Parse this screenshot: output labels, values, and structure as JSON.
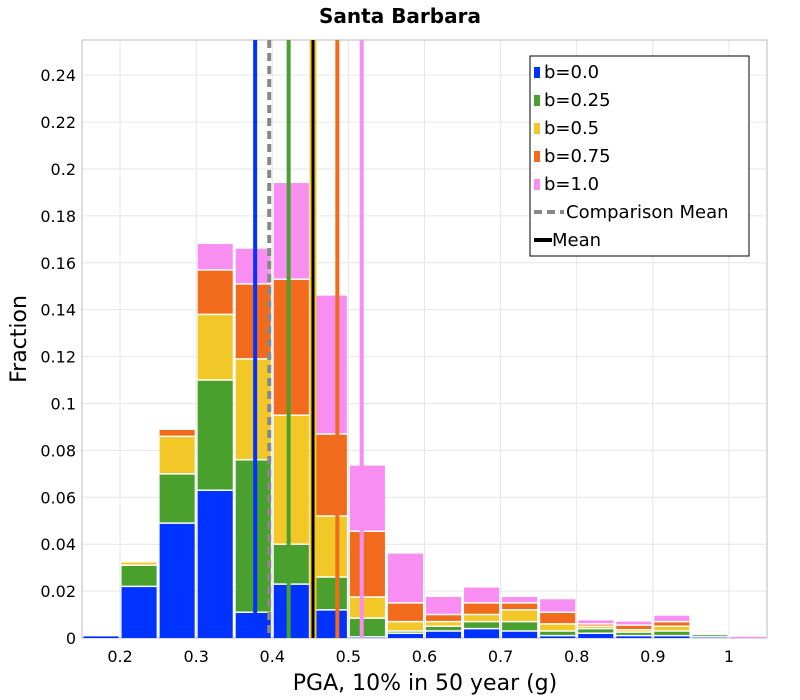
{
  "chart_data": {
    "type": "bar",
    "stacked": true,
    "title": "Santa Barbara",
    "xlabel": "PGA, 10% in 50 year (g)",
    "ylabel": "Fraction",
    "xlim": [
      0.15,
      1.05
    ],
    "ylim": [
      0,
      0.255
    ],
    "x_ticks": [
      "0.2",
      "0.3",
      "0.4",
      "0.5",
      "0.6",
      "0.7",
      "0.8",
      "0.9",
      "1"
    ],
    "y_ticks": [
      "0",
      "0.02",
      "0.04",
      "0.06",
      "0.08",
      "0.1",
      "0.12",
      "0.14",
      "0.16",
      "0.18",
      "0.2",
      "0.22",
      "0.24"
    ],
    "grid": true,
    "legend_position": "top-right",
    "bin_width": 0.05,
    "bin_centers": [
      0.175,
      0.225,
      0.275,
      0.325,
      0.375,
      0.425,
      0.475,
      0.525,
      0.575,
      0.625,
      0.675,
      0.725,
      0.775,
      0.825,
      0.875,
      0.925,
      0.975,
      1.025
    ],
    "series": [
      {
        "name": "b=0.0",
        "color": "#0033ff",
        "values": [
          0.001,
          0.022,
          0.049,
          0.063,
          0.011,
          0.023,
          0.012,
          0.0005,
          0.002,
          0.003,
          0.004,
          0.003,
          0.001,
          0.002,
          0.001,
          0.001,
          0.0005,
          0.0
        ]
      },
      {
        "name": "b=0.25",
        "color": "#4aa02c",
        "values": [
          0.0,
          0.009,
          0.021,
          0.047,
          0.065,
          0.017,
          0.014,
          0.008,
          0.001,
          0.002,
          0.003,
          0.004,
          0.002,
          0.002,
          0.0015,
          0.002,
          0.001,
          0.0
        ]
      },
      {
        "name": "b=0.5",
        "color": "#f2c829",
        "values": [
          0.0,
          0.0015,
          0.016,
          0.028,
          0.043,
          0.055,
          0.026,
          0.009,
          0.004,
          0.002,
          0.003,
          0.005,
          0.003,
          0.001,
          0.001,
          0.002,
          0.0005,
          0.0
        ]
      },
      {
        "name": "b=0.75",
        "color": "#f26b1d",
        "values": [
          0.0,
          0.0,
          0.003,
          0.019,
          0.032,
          0.058,
          0.035,
          0.028,
          0.008,
          0.003,
          0.005,
          0.003,
          0.005,
          0.001,
          0.002,
          0.002,
          0.0003,
          0.0
        ]
      },
      {
        "name": "b=1.0",
        "color": "#f98ef2",
        "values": [
          0.0,
          0.0,
          0.0,
          0.011,
          0.015,
          0.041,
          0.059,
          0.028,
          0.021,
          0.0075,
          0.0065,
          0.0025,
          0.0055,
          0.0015,
          0.0015,
          0.0025,
          0.0003,
          0.0005
        ]
      }
    ],
    "vertical_lines": [
      {
        "name": "b=0.0 mean",
        "x": 0.3775,
        "color": "#0033ff",
        "style": "solid"
      },
      {
        "name": "Comparison Mean",
        "x": 0.396,
        "color": "#888888",
        "style": "dashed"
      },
      {
        "name": "b=0.25 mean",
        "x": 0.4215,
        "color": "#4aa02c",
        "style": "solid"
      },
      {
        "name": "Mean",
        "x": 0.4535,
        "color": "#000000",
        "style": "solid",
        "outline": "#f2c829"
      },
      {
        "name": "b=0.75 mean",
        "x": 0.4855,
        "color": "#f26b1d",
        "style": "solid"
      },
      {
        "name": "b=1.0 mean",
        "x": 0.5175,
        "color": "#f98ef2",
        "style": "solid"
      }
    ],
    "legend": [
      {
        "label": "b=0.0",
        "kind": "box",
        "color": "#0033ff"
      },
      {
        "label": "b=0.25",
        "kind": "box",
        "color": "#4aa02c"
      },
      {
        "label": "b=0.5",
        "kind": "box",
        "color": "#f2c829"
      },
      {
        "label": "b=0.75",
        "kind": "box",
        "color": "#f26b1d"
      },
      {
        "label": "b=1.0",
        "kind": "box",
        "color": "#f98ef2"
      },
      {
        "label": "Comparison Mean",
        "kind": "dashed",
        "color": "#888888"
      },
      {
        "label": "Mean",
        "kind": "line",
        "color": "#000000"
      }
    ]
  }
}
